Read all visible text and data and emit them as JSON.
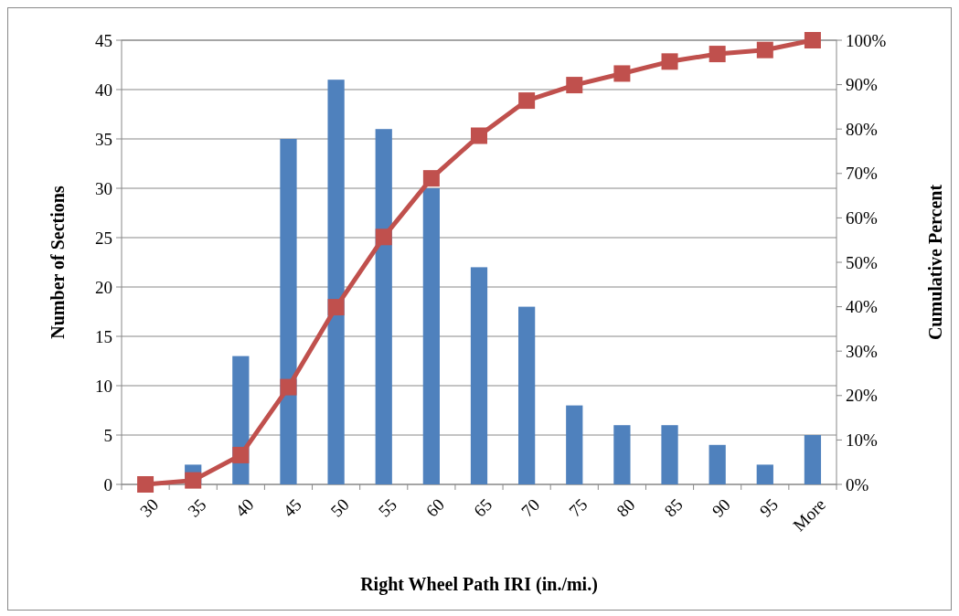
{
  "chart_data": {
    "type": "bar",
    "xlabel": "Right Wheel Path IRI (in./mi.)",
    "ylabel": "Number of Sections",
    "y2label": "Cumulative Percent",
    "categories": [
      "30",
      "35",
      "40",
      "45",
      "50",
      "55",
      "60",
      "65",
      "70",
      "75",
      "80",
      "85",
      "90",
      "95",
      "More"
    ],
    "series": [
      {
        "color": "#4f81bd",
        "values": [
          0,
          2,
          13,
          35,
          41,
          36,
          30,
          22,
          18,
          8,
          6,
          6,
          4,
          2,
          5
        ]
      },
      {
        "type": "line",
        "axis": "y2",
        "color": "#c0504d",
        "marker": "square",
        "values": [
          0,
          0.9,
          6.6,
          21.9,
          39.9,
          55.7,
          68.9,
          78.5,
          86.4,
          89.9,
          92.5,
          95.2,
          96.9,
          97.8,
          100
        ]
      }
    ],
    "ylim": [
      0,
      45
    ],
    "yticks": [
      0,
      5,
      10,
      15,
      20,
      25,
      30,
      35,
      40,
      45
    ],
    "y2lim": [
      0,
      100
    ],
    "y2ticks": [
      {
        "value": 0,
        "label": "0%"
      },
      {
        "value": 10,
        "label": "10%"
      },
      {
        "value": 20,
        "label": "20%"
      },
      {
        "value": 30,
        "label": "30%"
      },
      {
        "value": 40,
        "label": "40%"
      },
      {
        "value": 50,
        "label": "50%"
      },
      {
        "value": 60,
        "label": "60%"
      },
      {
        "value": 70,
        "label": "70%"
      },
      {
        "value": 80,
        "label": "80%"
      },
      {
        "value": 90,
        "label": "90%"
      },
      {
        "value": 100,
        "label": "100%"
      }
    ],
    "grid": "y"
  }
}
